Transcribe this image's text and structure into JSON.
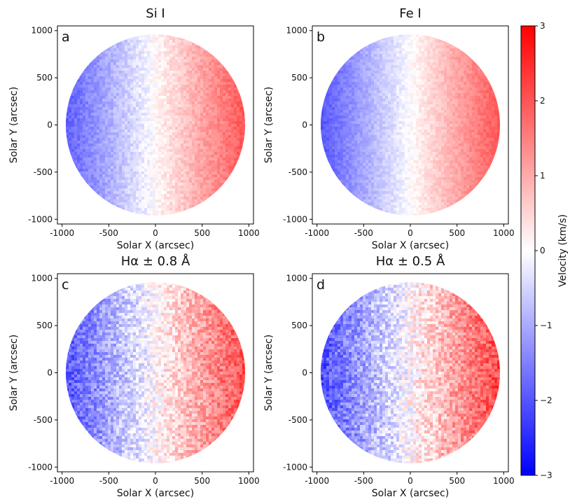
{
  "chart_data": [
    {
      "type": "heatmap",
      "panel_label": "a",
      "title": "Si I",
      "xlabel": "Solar X (arcsec)",
      "ylabel": "Solar Y (arcsec)",
      "xlim": [
        -1050,
        1050
      ],
      "ylim": [
        -1050,
        1050
      ],
      "xticks": [
        -1000,
        -500,
        0,
        500,
        1000
      ],
      "yticks": [
        -1000,
        -500,
        0,
        500,
        1000
      ],
      "disk_radius": 960,
      "velocity_gradient": {
        "x": [
          -960,
          960
        ],
        "v": [
          -1.9,
          2.0
        ]
      },
      "noise_level": 0.25
    },
    {
      "type": "heatmap",
      "panel_label": "b",
      "title": "Fe I",
      "xlabel": "Solar X (arcsec)",
      "ylabel": "Solar Y (arcsec)",
      "xlim": [
        -1050,
        1050
      ],
      "ylim": [
        -1050,
        1050
      ],
      "xticks": [
        -1000,
        -500,
        0,
        500,
        1000
      ],
      "yticks": [
        -1000,
        -500,
        0,
        500,
        1000
      ],
      "disk_radius": 960,
      "velocity_gradient": {
        "x": [
          -960,
          960
        ],
        "v": [
          -2.0,
          2.0
        ]
      },
      "noise_level": 0.2
    },
    {
      "type": "heatmap",
      "panel_label": "c",
      "title": "Hα ± 0.8 Å",
      "xlabel": "Solar X (arcsec)",
      "ylabel": "Solar Y (arcsec)",
      "xlim": [
        -1050,
        1050
      ],
      "ylim": [
        -1050,
        1050
      ],
      "xticks": [
        -1000,
        -500,
        0,
        500,
        1000
      ],
      "yticks": [
        -1000,
        -500,
        0,
        500,
        1000
      ],
      "disk_radius": 960,
      "velocity_gradient": {
        "x": [
          -960,
          960
        ],
        "v": [
          -2.0,
          2.1
        ]
      },
      "noise_level": 0.55
    },
    {
      "type": "heatmap",
      "panel_label": "d",
      "title": "Hα ± 0.5 Å",
      "xlabel": "Solar X (arcsec)",
      "ylabel": "Solar Y (arcsec)",
      "xlim": [
        -1050,
        1050
      ],
      "ylim": [
        -1050,
        1050
      ],
      "xticks": [
        -1000,
        -500,
        0,
        500,
        1000
      ],
      "yticks": [
        -1000,
        -500,
        0,
        500,
        1000
      ],
      "disk_radius": 960,
      "velocity_gradient": {
        "x": [
          -960,
          960
        ],
        "v": [
          -2.1,
          2.2
        ]
      },
      "noise_level": 0.6
    }
  ],
  "colorbar": {
    "label": "Velocity (km/s)",
    "range": [
      -3,
      3
    ],
    "ticks": [
      3,
      2,
      1,
      0,
      -1,
      -2,
      -3
    ],
    "tick_labels": [
      "3",
      "2",
      "1",
      "0",
      "−1",
      "−2",
      "−3"
    ],
    "colormap": {
      "min_color": "#0000ff",
      "mid_color": "#ffffff",
      "max_color": "#ff0000"
    }
  }
}
